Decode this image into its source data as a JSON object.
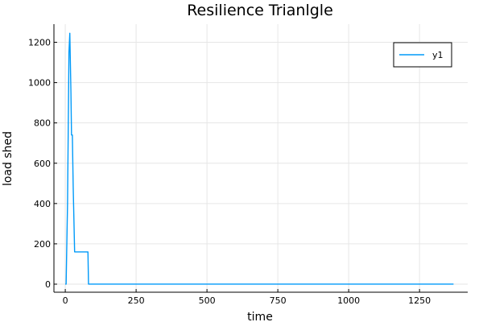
{
  "chart_data": {
    "type": "line",
    "title": "Resilience Trianlgle",
    "xlabel": "time",
    "ylabel": "load shed",
    "xlim": [
      -40,
      1420
    ],
    "ylim": [
      -40,
      1290
    ],
    "xticks": [
      0,
      250,
      500,
      750,
      1000,
      1250
    ],
    "yticks": [
      0,
      200,
      400,
      600,
      800,
      1000,
      1200
    ],
    "grid": true,
    "legend": "top-right",
    "series": [
      {
        "name": "y1",
        "color": "#009af9",
        "x": [
          0,
          3,
          8,
          13,
          16,
          20,
          22,
          25,
          28,
          33,
          60,
          77,
          80,
          82,
          100,
          300,
          600,
          900,
          1200,
          1370
        ],
        "y": [
          0,
          0,
          400,
          1150,
          1245,
          950,
          740,
          740,
          480,
          160,
          160,
          160,
          160,
          0,
          0,
          0,
          0,
          0,
          0,
          0
        ]
      }
    ]
  }
}
